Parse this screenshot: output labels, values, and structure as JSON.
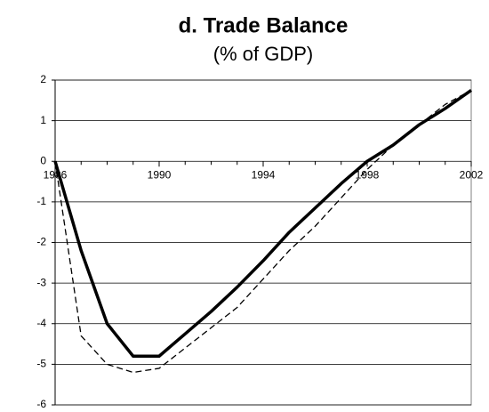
{
  "chart_data": {
    "type": "line",
    "title": "d. Trade Balance",
    "subtitle": "(% of GDP)",
    "x": [
      1986,
      1987,
      1988,
      1989,
      1990,
      1991,
      1992,
      1993,
      1994,
      1995,
      1996,
      1997,
      1998,
      1999,
      2000,
      2001,
      2002
    ],
    "series": [
      {
        "color": "#000000",
        "style": "solid",
        "values": [
          0,
          -2.2,
          -4.0,
          -4.8,
          -4.8,
          -4.25,
          -3.7,
          -3.1,
          -2.45,
          -1.75,
          -1.15,
          -0.55,
          0.0,
          0.4,
          0.9,
          1.3,
          1.75
        ]
      },
      {
        "color": "#000000",
        "style": "dashed",
        "values": [
          0,
          -4.3,
          -5.0,
          -5.2,
          -5.1,
          -4.6,
          -4.1,
          -3.6,
          -2.9,
          -2.2,
          -1.6,
          -0.9,
          -0.2,
          0.4,
          0.9,
          1.4,
          1.75
        ]
      }
    ],
    "xlim": [
      1986,
      2002
    ],
    "xticks": [
      1986,
      1990,
      1994,
      1998,
      2002
    ],
    "ylim": [
      -6,
      2
    ],
    "yticks": [
      -6,
      -5,
      -4,
      -3,
      -2,
      -1,
      0,
      1,
      2
    ],
    "grid": true
  }
}
